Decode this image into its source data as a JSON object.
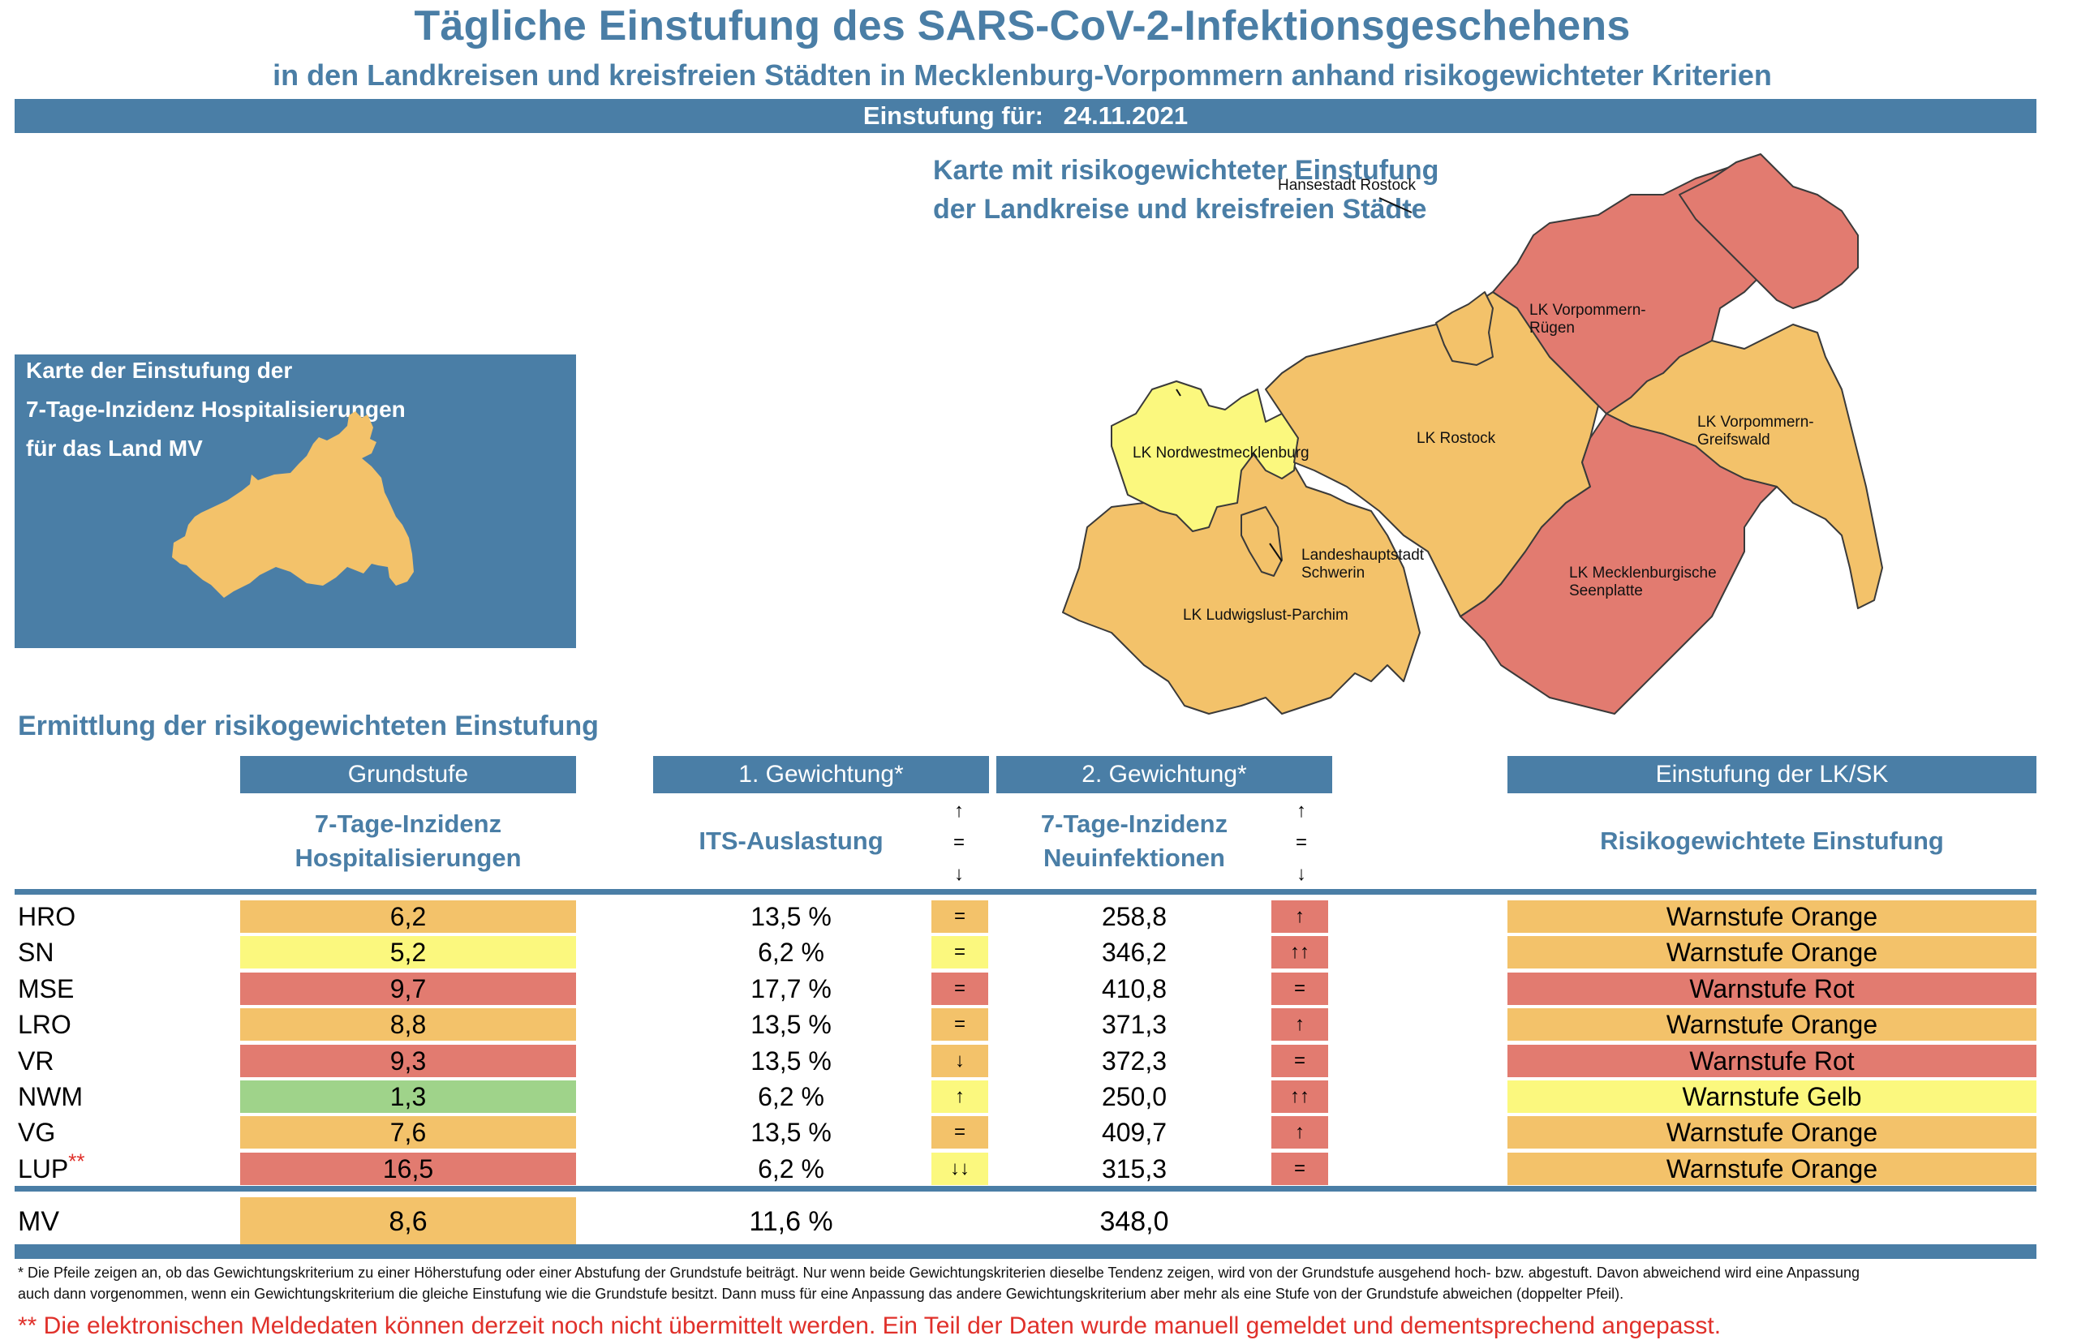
{
  "header": {
    "title": "Tägliche Einstufung des SARS-CoV-2-Infektionsgeschehens",
    "subtitle": "in den Landkreisen und kreisfreien Städten in Mecklenburg-Vorpommern anhand risikogewichteter Kriterien",
    "date_label": "Einstufung für:",
    "date_value": "24.11.2021"
  },
  "hosp_map": {
    "lines": [
      "Karte der Einstufung der",
      "7-Tage-Inzidenz Hospitalisierungen",
      "für das Land MV"
    ],
    "fill_color": "#f3c26a"
  },
  "district_map": {
    "title_lines": [
      "Karte mit risikogewichteter Einstufung",
      "der Landkreise und kreisfreien Städte"
    ],
    "labels": {
      "hro": "Hansestadt Rostock",
      "vr": [
        "LK Vorpommern-",
        "Rügen"
      ],
      "nwm": "LK Nordwestmecklenburg",
      "lro": "LK Rostock",
      "vg": [
        "LK Vorpommern-",
        "Greifswald"
      ],
      "sn": [
        "Landeshauptstadt",
        "Schwerin"
      ],
      "mse": [
        "LK Mecklenburgische",
        "Seenplatte"
      ],
      "lup": "LK Ludwigslust-Parchim"
    },
    "colors": {
      "hro": "#f3c26a",
      "vr": "#e27b70",
      "nwm": "#fbf87e",
      "lro": "#f3c26a",
      "vg": "#f3c26a",
      "sn": "#f3c26a",
      "mse": "#e27b70",
      "lup": "#f3c26a"
    }
  },
  "table": {
    "section_title": "Ermittlung der risikogewichteten Einstufung",
    "headers": {
      "grundstufe": "Grundstufe",
      "gew1": "1. Gewichtung*",
      "gew2": "2. Gewichtung*",
      "einstufung": "Einstufung der LK/SK"
    },
    "subheaders": {
      "grundstufe": [
        "7-Tage-Inzidenz",
        "Hospitalisierungen"
      ],
      "gew1": "ITS-Auslastung",
      "gew2": [
        "7-Tage-Inzidenz",
        "Neuinfektionen"
      ],
      "einstufung": "Risikogewichtete Einstufung",
      "arrow_legend": [
        "↑",
        "=",
        "↓"
      ]
    },
    "colors": {
      "orange": "#f3c26a",
      "yellow": "#fbf87e",
      "red": "#e27b70",
      "green": "#9fd38a",
      "header_blue": "#4a7ea6"
    },
    "rows": [
      {
        "abbr": "HRO",
        "star": "",
        "grund": "6,2",
        "grund_color": "#f3c26a",
        "its": "13,5 %",
        "its_arrow": "=",
        "its_color": "#f3c26a",
        "inz": "258,8",
        "inz_arrow": "↑",
        "inz_color": "#e27b70",
        "final": "Warnstufe Orange",
        "final_color": "#f3c26a"
      },
      {
        "abbr": "SN",
        "star": "",
        "grund": "5,2",
        "grund_color": "#fbf87e",
        "its": "6,2 %",
        "its_arrow": "=",
        "its_color": "#fbf87e",
        "inz": "346,2",
        "inz_arrow": "↑↑",
        "inz_color": "#e27b70",
        "final": "Warnstufe Orange",
        "final_color": "#f3c26a"
      },
      {
        "abbr": "MSE",
        "star": "",
        "grund": "9,7",
        "grund_color": "#e27b70",
        "its": "17,7 %",
        "its_arrow": "=",
        "its_color": "#e27b70",
        "inz": "410,8",
        "inz_arrow": "=",
        "inz_color": "#e27b70",
        "final": "Warnstufe Rot",
        "final_color": "#e27b70"
      },
      {
        "abbr": "LRO",
        "star": "",
        "grund": "8,8",
        "grund_color": "#f3c26a",
        "its": "13,5 %",
        "its_arrow": "=",
        "its_color": "#f3c26a",
        "inz": "371,3",
        "inz_arrow": "↑",
        "inz_color": "#e27b70",
        "final": "Warnstufe Orange",
        "final_color": "#f3c26a"
      },
      {
        "abbr": "VR",
        "star": "",
        "grund": "9,3",
        "grund_color": "#e27b70",
        "its": "13,5 %",
        "its_arrow": "↓",
        "its_color": "#f3c26a",
        "inz": "372,3",
        "inz_arrow": "=",
        "inz_color": "#e27b70",
        "final": "Warnstufe Rot",
        "final_color": "#e27b70"
      },
      {
        "abbr": "NWM",
        "star": "",
        "grund": "1,3",
        "grund_color": "#9fd38a",
        "its": "6,2 %",
        "its_arrow": "↑",
        "its_color": "#fbf87e",
        "inz": "250,0",
        "inz_arrow": "↑↑",
        "inz_color": "#e27b70",
        "final": "Warnstufe Gelb",
        "final_color": "#fbf87e"
      },
      {
        "abbr": "VG",
        "star": "",
        "grund": "7,6",
        "grund_color": "#f3c26a",
        "its": "13,5 %",
        "its_arrow": "=",
        "its_color": "#f3c26a",
        "inz": "409,7",
        "inz_arrow": "↑",
        "inz_color": "#e27b70",
        "final": "Warnstufe Orange",
        "final_color": "#f3c26a"
      },
      {
        "abbr": "LUP",
        "star": "**",
        "grund": "16,5",
        "grund_color": "#e27b70",
        "its": "6,2 %",
        "its_arrow": "↓↓",
        "its_color": "#fbf87e",
        "inz": "315,3",
        "inz_arrow": "=",
        "inz_color": "#e27b70",
        "final": "Warnstufe Orange",
        "final_color": "#f3c26a"
      }
    ],
    "total": {
      "abbr": "MV",
      "grund": "8,6",
      "grund_color": "#f3c26a",
      "its": "11,6 %",
      "inz": "348,0"
    }
  },
  "footnotes": {
    "arrows_note_line1": "* Die Pfeile zeigen an, ob das Gewichtungskriterium zu einer Höherstufung oder einer Abstufung der Grundstufe beiträgt. Nur wenn beide Gewichtungskriterien dieselbe Tendenz zeigen, wird von der Grundstufe ausgehend hoch- bzw. abgestuft.  Davon abweichend wird eine Anpassung",
    "arrows_note_line2": "auch dann vorgenommen, wenn ein Gewichtungskriterium die gleiche Einstufung wie die Grundstufe besitzt. Dann muss für eine Anpassung das andere Gewichtungskriterium aber mehr als eine Stufe von der Grundstufe abweichen (doppelter Pfeil).",
    "data_note": "** Die elektronischen Meldedaten können derzeit noch nicht übermittelt werden. Ein Teil der Daten wurde manuell gemeldet und dementsprechend angepasst."
  }
}
